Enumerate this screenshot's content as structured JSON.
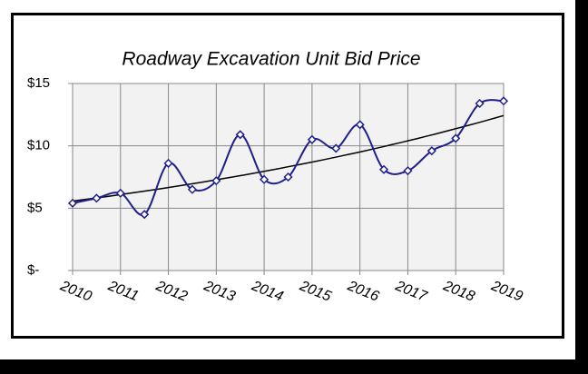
{
  "chart_data": {
    "type": "line",
    "title": "Roadway Excavation Unit Bid Price",
    "x": [
      2010,
      2010.5,
      2011,
      2011.5,
      2012,
      2012.5,
      2013,
      2013.5,
      2014,
      2014.5,
      2015,
      2015.5,
      2016,
      2016.5,
      2017,
      2017.5,
      2018,
      2018.5,
      2019
    ],
    "series": [
      {
        "color": "#1f1f8c",
        "values": [
          5.4,
          5.8,
          6.2,
          4.5,
          8.6,
          6.5,
          7.2,
          10.9,
          7.3,
          7.5,
          10.5,
          9.8,
          11.7,
          8.1,
          8.0,
          9.6,
          10.6,
          13.4,
          13.6
        ]
      }
    ],
    "xlim": [
      2010,
      2019
    ],
    "xticks": [
      2010,
      2011,
      2012,
      2013,
      2014,
      2015,
      2016,
      2017,
      2018,
      2019
    ],
    "ylim": [
      0,
      15
    ],
    "yticks": [
      {
        "value": 0,
        "label": "$-"
      },
      {
        "value": 5,
        "label": "$5"
      },
      {
        "value": 10,
        "label": "$10"
      },
      {
        "value": 15,
        "label": "$15"
      }
    ],
    "grid": true,
    "smooth": true,
    "trendline": {
      "kind": "exponential",
      "color": "#000000"
    }
  }
}
